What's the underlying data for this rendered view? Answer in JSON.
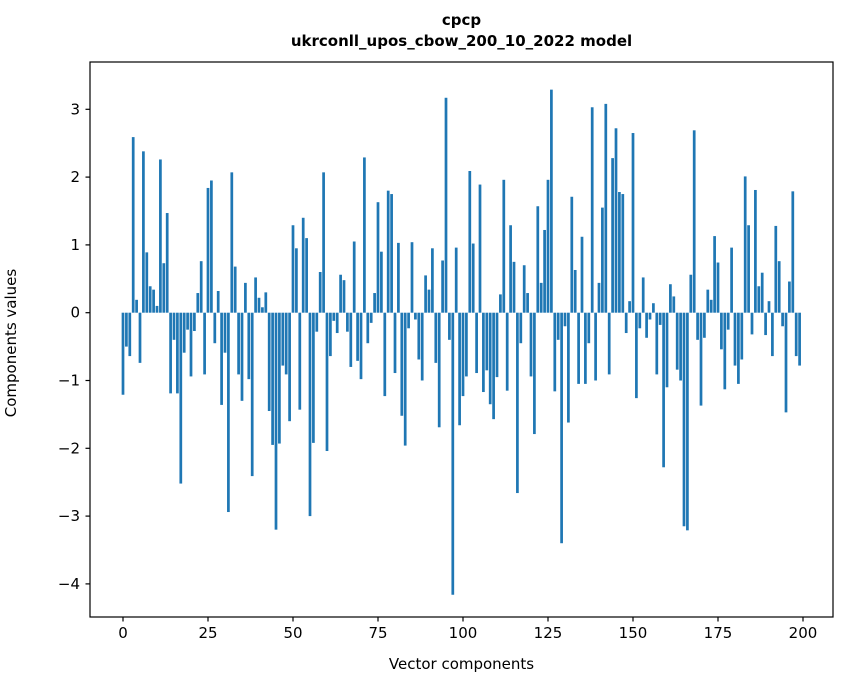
{
  "figure": {
    "title_line1": "cpcp",
    "title_line2": "ukrconll_upos_cbow_200_10_2022 model",
    "xlabel": "Vector components",
    "ylabel": "Components values"
  },
  "chart_data": {
    "type": "bar",
    "title": "cpcp",
    "subtitle": "ukrconll_upos_cbow_200_10_2022 model",
    "xlabel": "Vector components",
    "ylabel": "Components values",
    "x_is_index": true,
    "x_ticks": [
      0,
      25,
      50,
      75,
      100,
      125,
      150,
      175,
      200
    ],
    "y_ticks": [
      3,
      2,
      1,
      0,
      -1,
      -2,
      -3,
      -4
    ],
    "xlim": [
      -9.7,
      209.0
    ],
    "ylim": [
      -4.49,
      3.7
    ],
    "grid": false,
    "legend": "none",
    "bar_color": "#1f77b4",
    "axis_color": "#000000",
    "values": [
      -1.21,
      -0.5,
      -0.64,
      2.59,
      0.19,
      -0.74,
      2.38,
      0.89,
      0.39,
      0.34,
      0.1,
      2.26,
      0.73,
      1.47,
      -1.19,
      -0.4,
      -1.19,
      -2.52,
      -0.59,
      -0.25,
      -0.94,
      -0.27,
      0.29,
      0.76,
      -0.91,
      1.84,
      1.95,
      -0.45,
      0.32,
      -1.36,
      -0.59,
      -2.94,
      2.07,
      0.68,
      -0.91,
      -1.3,
      0.44,
      -0.98,
      -2.41,
      0.52,
      0.22,
      0.08,
      0.3,
      -1.45,
      -1.95,
      -3.2,
      -1.93,
      -0.78,
      -0.91,
      -1.6,
      1.29,
      0.95,
      -1.43,
      1.4,
      1.1,
      -3.0,
      -1.92,
      -0.28,
      0.6,
      2.07,
      -2.04,
      -0.64,
      -0.12,
      -0.3,
      0.56,
      0.48,
      -0.28,
      -0.8,
      1.05,
      -0.71,
      -0.98,
      2.29,
      -0.45,
      -0.15,
      0.29,
      1.63,
      0.9,
      -1.23,
      1.8,
      1.75,
      -0.89,
      1.03,
      -1.52,
      -1.96,
      -0.23,
      1.04,
      -0.1,
      -0.69,
      -1.0,
      0.55,
      0.34,
      0.95,
      -0.74,
      -1.69,
      0.77,
      3.17,
      -0.4,
      -4.16,
      0.96,
      -1.66,
      -1.23,
      -0.94,
      2.09,
      1.02,
      -0.89,
      1.89,
      -1.17,
      -0.85,
      -1.35,
      -1.57,
      -0.95,
      0.27,
      1.96,
      -1.15,
      1.29,
      0.75,
      -2.66,
      -0.45,
      0.7,
      0.29,
      -0.94,
      -1.79,
      1.57,
      0.44,
      1.22,
      1.96,
      3.29,
      -1.16,
      -0.4,
      -3.4,
      -0.2,
      -1.62,
      1.71,
      0.63,
      -1.05,
      1.12,
      -1.05,
      -0.45,
      3.03,
      -1.0,
      0.44,
      1.55,
      3.08,
      -0.91,
      2.28,
      2.72,
      1.78,
      1.75,
      -0.3,
      0.17,
      2.65,
      -1.26,
      -0.23,
      0.52,
      -0.37,
      -0.1,
      0.14,
      -0.91,
      -0.18,
      -2.28,
      -1.1,
      0.42,
      0.24,
      -0.84,
      -1.0,
      -3.15,
      -3.21,
      0.56,
      2.69,
      -0.4,
      -1.37,
      -0.37,
      0.34,
      0.19,
      1.13,
      0.74,
      -0.54,
      -1.13,
      -0.25,
      0.96,
      -0.78,
      -1.05,
      -0.69,
      2.01,
      1.29,
      -0.32,
      1.81,
      0.39,
      0.59,
      -0.33,
      0.17,
      -0.64,
      1.28,
      0.76,
      -0.2,
      -1.47,
      0.46,
      1.79,
      -0.64,
      -0.78
    ]
  }
}
